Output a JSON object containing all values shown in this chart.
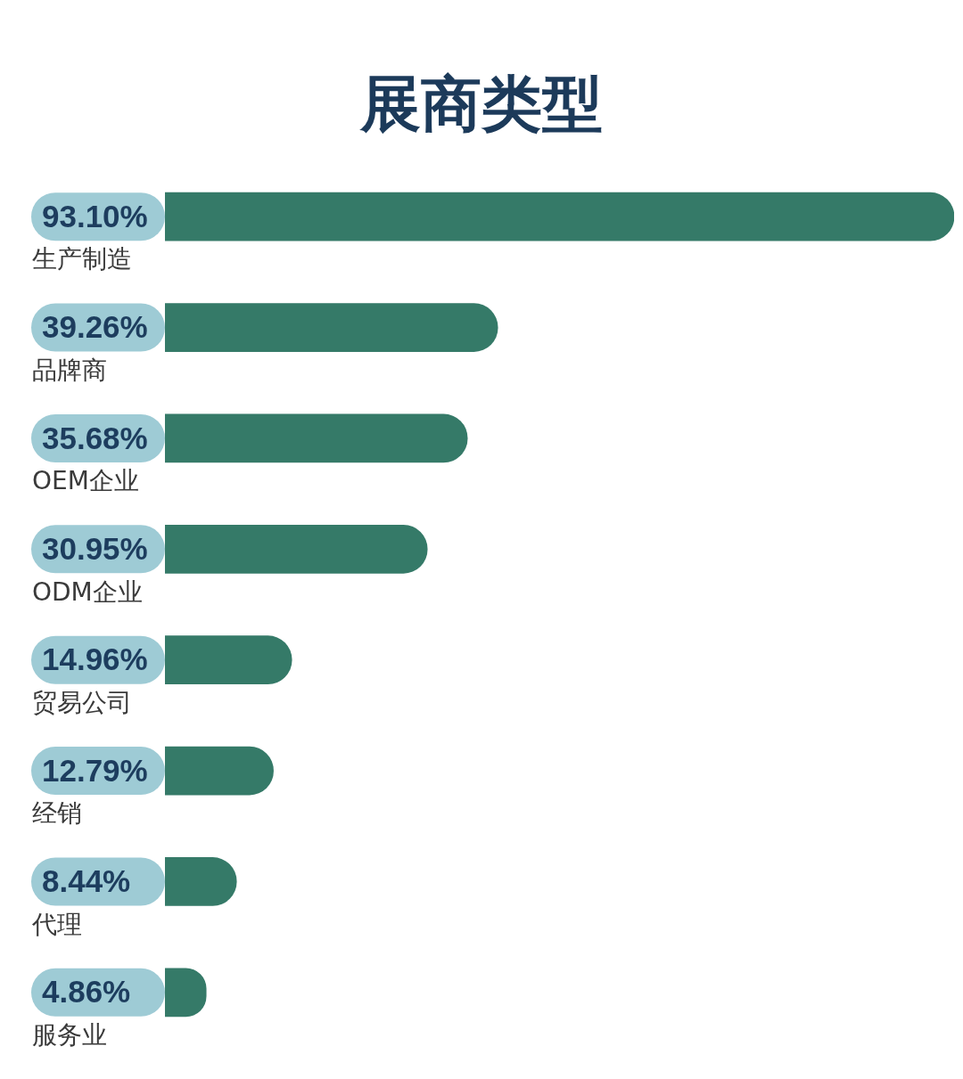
{
  "chart_data": {
    "type": "bar",
    "title": "展商类型",
    "orientation": "horizontal",
    "categories": [
      "生产制造",
      "品牌商",
      "OEM企业",
      "ODM企业",
      "贸易公司",
      "经销",
      "代理",
      "服务业"
    ],
    "values": [
      93.1,
      39.26,
      35.68,
      30.95,
      14.96,
      12.79,
      8.44,
      4.86
    ],
    "value_labels": [
      "93.10%",
      "39.26%",
      "35.68%",
      "30.95%",
      "14.96%",
      "12.79%",
      "8.44%",
      "4.86%"
    ],
    "color": "#357a68"
  }
}
